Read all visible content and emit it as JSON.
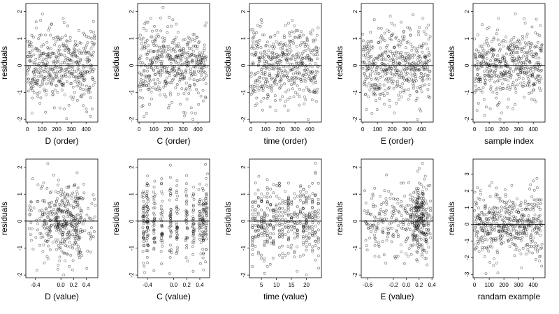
{
  "figure": {
    "panels": [
      {
        "id": "d-order",
        "xlabel": "D (order)",
        "ylabel": "residuals",
        "xlim": [
          -10,
          480
        ],
        "ylim": [
          -2.1,
          2.3
        ],
        "xticks": [
          0,
          100,
          200,
          300,
          400
        ],
        "xtick_labels": [
          "0",
          "100",
          "200",
          "300",
          "400"
        ],
        "yticks": [
          -2,
          -1,
          0,
          1,
          2
        ],
        "ytick_labels": [
          "-2",
          "-1",
          "0",
          "1",
          "2"
        ],
        "hline": 0,
        "points": {
          "kind": "order",
          "n": 460,
          "seed": 11,
          "sd": 0.7
        }
      },
      {
        "id": "c-order",
        "xlabel": "C (order)",
        "ylabel": "residuals",
        "xlim": [
          -10,
          480
        ],
        "ylim": [
          -2.1,
          2.3
        ],
        "xticks": [
          0,
          100,
          200,
          300,
          400
        ],
        "xtick_labels": [
          "0",
          "100",
          "200",
          "300",
          "400"
        ],
        "yticks": [
          -2,
          -1,
          0,
          1,
          2
        ],
        "ytick_labels": [
          "-2",
          "-1",
          "0",
          "1",
          "2"
        ],
        "hline": 0,
        "points": {
          "kind": "order",
          "n": 460,
          "seed": 23,
          "sd": 0.7
        }
      },
      {
        "id": "time-order",
        "xlabel": "time (order)",
        "ylabel": "residuals",
        "xlim": [
          -10,
          480
        ],
        "ylim": [
          -2.1,
          2.3
        ],
        "xticks": [
          0,
          100,
          200,
          300,
          400
        ],
        "xtick_labels": [
          "0",
          "100",
          "200",
          "300",
          "400"
        ],
        "yticks": [
          -2,
          -1,
          0,
          1,
          2
        ],
        "ytick_labels": [
          "-2",
          "-1",
          "0",
          "1",
          "2"
        ],
        "hline": 0,
        "points": {
          "kind": "order",
          "n": 460,
          "seed": 37,
          "sd": 0.7
        }
      },
      {
        "id": "e-order",
        "xlabel": "E (order)",
        "ylabel": "residuals",
        "xlim": [
          -10,
          480
        ],
        "ylim": [
          -2.1,
          2.3
        ],
        "xticks": [
          0,
          100,
          200,
          300,
          400
        ],
        "xtick_labels": [
          "0",
          "100",
          "200",
          "300",
          "400"
        ],
        "yticks": [
          -2,
          -1,
          0,
          1,
          2
        ],
        "ytick_labels": [
          "-2",
          "-1",
          "0",
          "1",
          "2"
        ],
        "hline": 0,
        "points": {
          "kind": "order",
          "n": 460,
          "seed": 41,
          "sd": 0.7
        }
      },
      {
        "id": "sample-index",
        "xlabel": "sample index",
        "ylabel": "residuals",
        "xlim": [
          -10,
          480
        ],
        "ylim": [
          -2.1,
          2.3
        ],
        "xticks": [
          0,
          100,
          200,
          300,
          400
        ],
        "xtick_labels": [
          "0",
          "100",
          "200",
          "300",
          "400"
        ],
        "yticks": [
          -2,
          -1,
          0,
          1,
          2
        ],
        "ytick_labels": [
          "-2",
          "-1",
          "0",
          "1",
          "2"
        ],
        "hline": 0,
        "points": {
          "kind": "order",
          "n": 460,
          "seed": 53,
          "sd": 0.7
        }
      },
      {
        "id": "d-value",
        "xlabel": "D (value)",
        "ylabel": "residuals",
        "xlim": [
          -0.55,
          0.58
        ],
        "ylim": [
          -2.1,
          2.3
        ],
        "xticks": [
          -0.4,
          0,
          0.2,
          0.4
        ],
        "xtick_labels": [
          "-0.4",
          "0.0",
          "0.2",
          "0.4"
        ],
        "yticks": [
          -2,
          -1,
          0,
          1,
          2
        ],
        "ytick_labels": [
          "-2",
          "-1",
          "0",
          "1",
          "2"
        ],
        "hline": 0,
        "points": {
          "kind": "cluster",
          "n": 420,
          "seed": 61,
          "sd": 0.7,
          "min": -0.5,
          "max": 0.55,
          "centers": [
            -0.2,
            -0.05,
            0.02,
            0.1,
            0.2,
            0.25
          ],
          "jitter": 0.04
        }
      },
      {
        "id": "c-value",
        "xlabel": "C (value)",
        "ylabel": "residuals",
        "xlim": [
          -0.55,
          0.55
        ],
        "ylim": [
          -2.1,
          2.3
        ],
        "xticks": [
          -0.4,
          0,
          0.2,
          0.4
        ],
        "xtick_labels": [
          "-0.4",
          "0.0",
          "0.2",
          "0.4"
        ],
        "yticks": [
          -2,
          -1,
          0,
          1,
          2
        ],
        "ytick_labels": [
          "-2",
          "-1",
          "0",
          "1",
          "2"
        ],
        "hline": 0,
        "points": {
          "kind": "columns",
          "n": 420,
          "seed": 71,
          "sd": 0.75,
          "cols": [
            -0.46,
            -0.4,
            -0.3,
            -0.18,
            -0.05,
            0.05,
            0.2,
            0.3,
            0.4,
            0.45,
            0.5
          ],
          "jitter": 0.008
        }
      },
      {
        "id": "time-value",
        "xlabel": "time (value)",
        "ylabel": "residuals",
        "xlim": [
          1,
          25
        ],
        "ylim": [
          -2.1,
          2.3
        ],
        "xticks": [
          5,
          10,
          15,
          20
        ],
        "xtick_labels": [
          "5",
          "10",
          "15",
          "20"
        ],
        "yticks": [
          -2,
          -1,
          0,
          1,
          2
        ],
        "ytick_labels": [
          "-2",
          "-1",
          "0",
          "1",
          "2"
        ],
        "hline": 0,
        "points": {
          "kind": "columns",
          "n": 440,
          "seed": 83,
          "sd": 0.7,
          "cols": [
            2,
            3,
            4,
            5,
            6,
            7,
            8,
            9,
            10,
            11,
            12,
            13,
            14,
            15,
            16,
            17,
            18,
            19,
            20,
            21,
            22,
            23,
            24
          ],
          "jitter": 0.05
        }
      },
      {
        "id": "e-value",
        "xlabel": "E (value)",
        "ylabel": "residuals",
        "xlim": [
          -0.7,
          0.42
        ],
        "ylim": [
          -2.1,
          2.3
        ],
        "xticks": [
          -0.6,
          -0.2,
          0,
          0.2,
          0.4
        ],
        "xtick_labels": [
          "-0.6",
          "-0.2",
          "0.0",
          "0.2",
          "0.4"
        ],
        "yticks": [
          -2,
          -1,
          0,
          1,
          2
        ],
        "ytick_labels": [
          "-2",
          "-1",
          "0",
          "1",
          "2"
        ],
        "hline": 0,
        "points": {
          "kind": "cluster",
          "n": 440,
          "seed": 97,
          "sd": 0.7,
          "min": -0.65,
          "max": 0.35,
          "centers": [
            0.15,
            0.2,
            0.3
          ],
          "jitter": 0.05
        }
      },
      {
        "id": "random-example",
        "xlabel": "randam example",
        "ylabel": "residuals",
        "xlim": [
          -10,
          480
        ],
        "ylim": [
          -3.2,
          3.9
        ],
        "xticks": [
          0,
          100,
          200,
          300,
          400
        ],
        "xtick_labels": [
          "0",
          "100",
          "200",
          "300",
          "400"
        ],
        "yticks": [
          -3,
          -2,
          -1,
          0,
          1,
          2,
          3
        ],
        "ytick_labels": [
          "-3",
          "-2",
          "-1",
          "0",
          "1",
          "2",
          "3"
        ],
        "hline": 0,
        "points": {
          "kind": "order",
          "n": 460,
          "seed": 109,
          "sd": 1.0
        }
      }
    ]
  },
  "chart_data": {
    "type": "scatter",
    "title": "",
    "grid": false,
    "marker": "open-circle",
    "reference_line": 0,
    "ylabel": "residuals",
    "panels": [
      {
        "xlabel": "D (order)",
        "x_range": [
          0,
          460
        ],
        "y_range": [
          -2,
          2
        ]
      },
      {
        "xlabel": "C (order)",
        "x_range": [
          0,
          460
        ],
        "y_range": [
          -2,
          2
        ]
      },
      {
        "xlabel": "time (order)",
        "x_range": [
          0,
          460
        ],
        "y_range": [
          -2,
          2
        ]
      },
      {
        "xlabel": "E (order)",
        "x_range": [
          0,
          460
        ],
        "y_range": [
          -2,
          2
        ]
      },
      {
        "xlabel": "sample index",
        "x_range": [
          0,
          460
        ],
        "y_range": [
          -2,
          2
        ]
      },
      {
        "xlabel": "D (value)",
        "x_range": [
          -0.5,
          0.55
        ],
        "y_range": [
          -2,
          2
        ]
      },
      {
        "xlabel": "C (value)",
        "x_range": [
          -0.5,
          0.5
        ],
        "y_range": [
          -2,
          2
        ]
      },
      {
        "xlabel": "time (value)",
        "x_range": [
          2,
          24
        ],
        "y_range": [
          -2,
          2
        ]
      },
      {
        "xlabel": "E (value)",
        "x_range": [
          -0.65,
          0.35
        ],
        "y_range": [
          -2,
          2
        ]
      },
      {
        "xlabel": "randam example",
        "x_range": [
          0,
          460
        ],
        "y_range": [
          -3,
          3.5
        ]
      }
    ]
  }
}
